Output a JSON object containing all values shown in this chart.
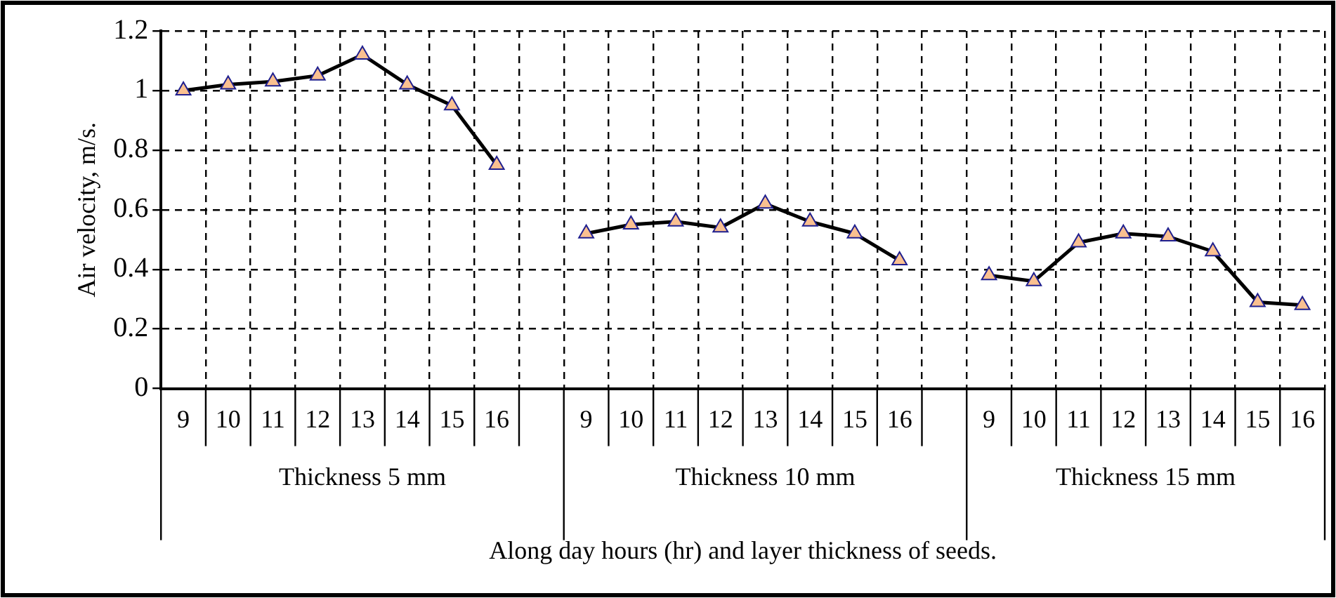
{
  "chart_data": {
    "type": "line",
    "xlabel": "Along day hours (hr) and layer thickness of seeds.",
    "ylabel": "Air velocity, m/s.",
    "categories": [
      "9",
      "10",
      "11",
      "12",
      "13",
      "14",
      "15",
      "16",
      null,
      "9",
      "10",
      "11",
      "12",
      "13",
      "14",
      "15",
      "16",
      null,
      "9",
      "10",
      "11",
      "12",
      "13",
      "14",
      "15",
      "16"
    ],
    "series": [
      {
        "color": "#000000",
        "values": [
          1.0,
          1.02,
          1.03,
          1.05,
          1.12,
          1.02,
          0.95,
          0.75,
          null,
          0.52,
          0.55,
          0.56,
          0.54,
          0.62,
          0.56,
          0.52,
          0.43,
          null,
          0.38,
          0.36,
          0.49,
          0.52,
          0.51,
          0.46,
          0.29,
          0.28
        ]
      }
    ],
    "annotations": [
      "Thickness 5 mm",
      "Thickness 10 mm",
      "Thickness 15 mm"
    ],
    "ylim": [
      0,
      1.2
    ],
    "yticks": [
      0,
      0.2,
      0.4,
      0.6,
      0.8,
      1,
      1.2
    ],
    "grid": true,
    "marker": "triangle",
    "line_style": "solid",
    "legend": false
  }
}
